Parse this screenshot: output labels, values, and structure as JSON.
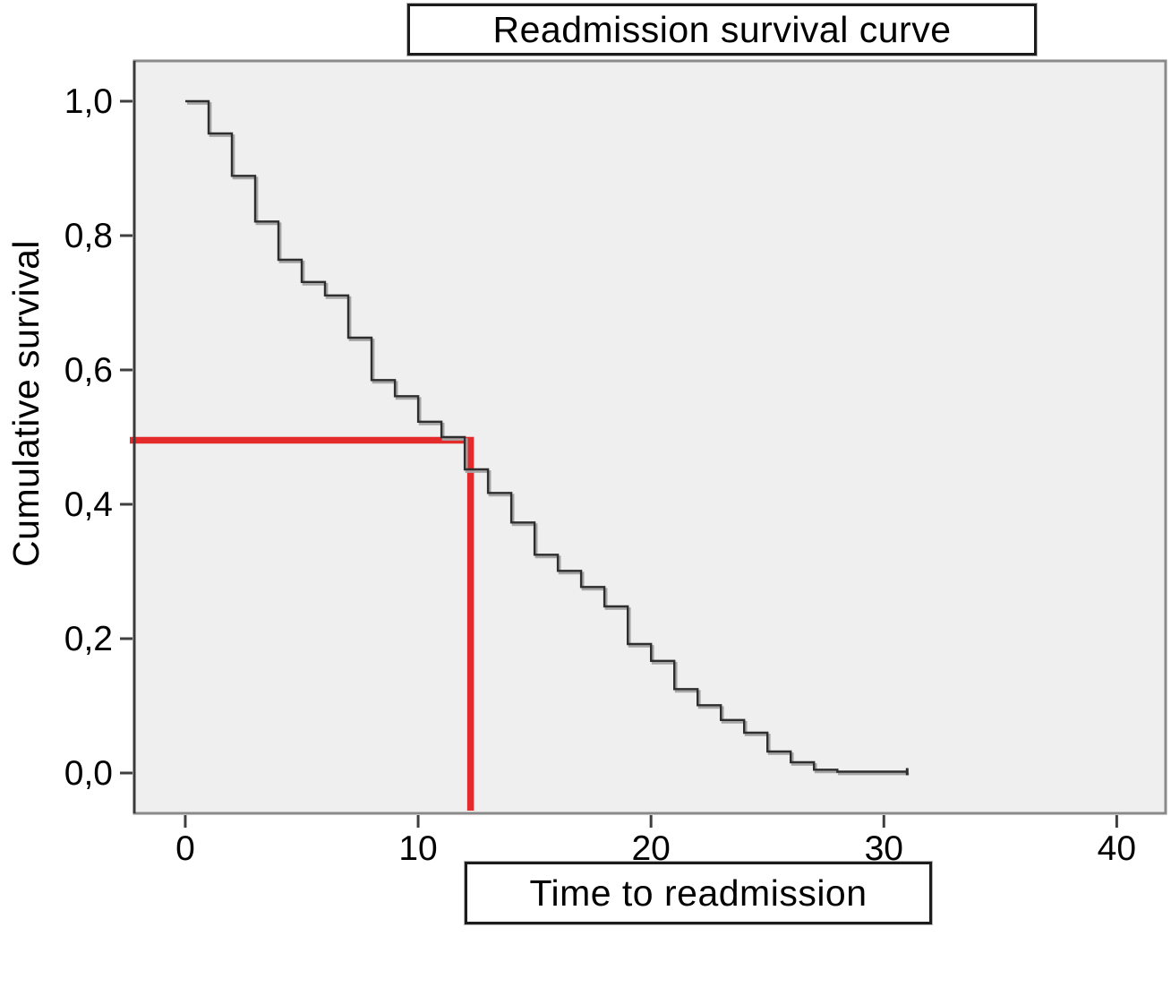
{
  "figure": {
    "title": "Readmission survival curve",
    "x_axis_label": "Time to readmission",
    "y_axis_label": "Cumulative survival",
    "x_tick_labels": [
      "0",
      "10",
      "20",
      "30",
      "40"
    ],
    "y_tick_labels": [
      "0,0",
      "0,2",
      "0,4",
      "0,6",
      "0,8",
      "1,0"
    ]
  },
  "colors": {
    "page_background": "#ffffff",
    "plot_background": "#f0efef",
    "plot_border": "#8a8a8a",
    "axis_left_edge": "#3a3a3a",
    "tick": "#3f3f3f",
    "curve": "#2e2e2e",
    "curve_shadow": "#a6a6a6",
    "median_line": "#e42a2b",
    "text": "#000000"
  },
  "chart_data": {
    "type": "line",
    "subtype": "kaplan-meier-survival-step",
    "title": "Readmission survival curve",
    "xlabel": "Time to readmission",
    "ylabel": "Cumulative survival",
    "xlim": [
      -2.19,
      42.1
    ],
    "ylim": [
      -0.06,
      1.06
    ],
    "x_ticks": [
      0,
      10,
      20,
      30,
      40
    ],
    "y_ticks": [
      0.0,
      0.2,
      0.4,
      0.6,
      0.8,
      1.0
    ],
    "y_tick_labels": [
      "0,0",
      "0,2",
      "0,4",
      "0,6",
      "0,8",
      "1,0"
    ],
    "grid": false,
    "legend": false,
    "series": [
      {
        "name": "Cumulative survival",
        "step": "post",
        "color": "#2e2e2e",
        "points": [
          [
            0,
            1.0
          ],
          [
            1,
            0.952
          ],
          [
            2,
            0.889
          ],
          [
            3,
            0.821
          ],
          [
            4,
            0.764
          ],
          [
            5,
            0.731
          ],
          [
            6,
            0.711
          ],
          [
            7,
            0.648
          ],
          [
            8,
            0.585
          ],
          [
            9,
            0.561
          ],
          [
            10,
            0.523
          ],
          [
            11,
            0.5
          ],
          [
            12,
            0.452
          ],
          [
            13,
            0.417
          ],
          [
            14,
            0.373
          ],
          [
            15,
            0.325
          ],
          [
            16,
            0.301
          ],
          [
            17,
            0.277
          ],
          [
            18,
            0.248
          ],
          [
            19,
            0.192
          ],
          [
            20,
            0.167
          ],
          [
            21,
            0.125
          ],
          [
            22,
            0.101
          ],
          [
            23,
            0.079
          ],
          [
            24,
            0.06
          ],
          [
            25,
            0.032
          ],
          [
            26,
            0.016
          ],
          [
            27,
            0.005
          ],
          [
            28,
            0.002
          ],
          [
            31,
            0.002
          ]
        ],
        "terminal_censor_mark": [
          31,
          0.002
        ]
      }
    ],
    "reference_lines": [
      {
        "name": "median-time-to-readmission",
        "y": 0.5,
        "x": 12.25,
        "shape": "horizontal-from-y-axis-then-vertical-to-bottom",
        "color": "#e42a2b"
      }
    ]
  }
}
